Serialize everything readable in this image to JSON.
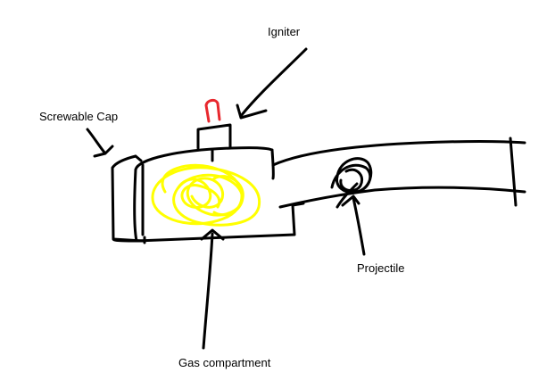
{
  "labels": {
    "igniter": "Igniter",
    "screwable_cap": "Screwable Cap",
    "projectile": "Projectile",
    "gas_compartment": "Gas compartment"
  },
  "colors": {
    "ink": "#000000",
    "gas": "#ffff00",
    "igniter_tip": "#e8282e",
    "background": "#ffffff"
  }
}
